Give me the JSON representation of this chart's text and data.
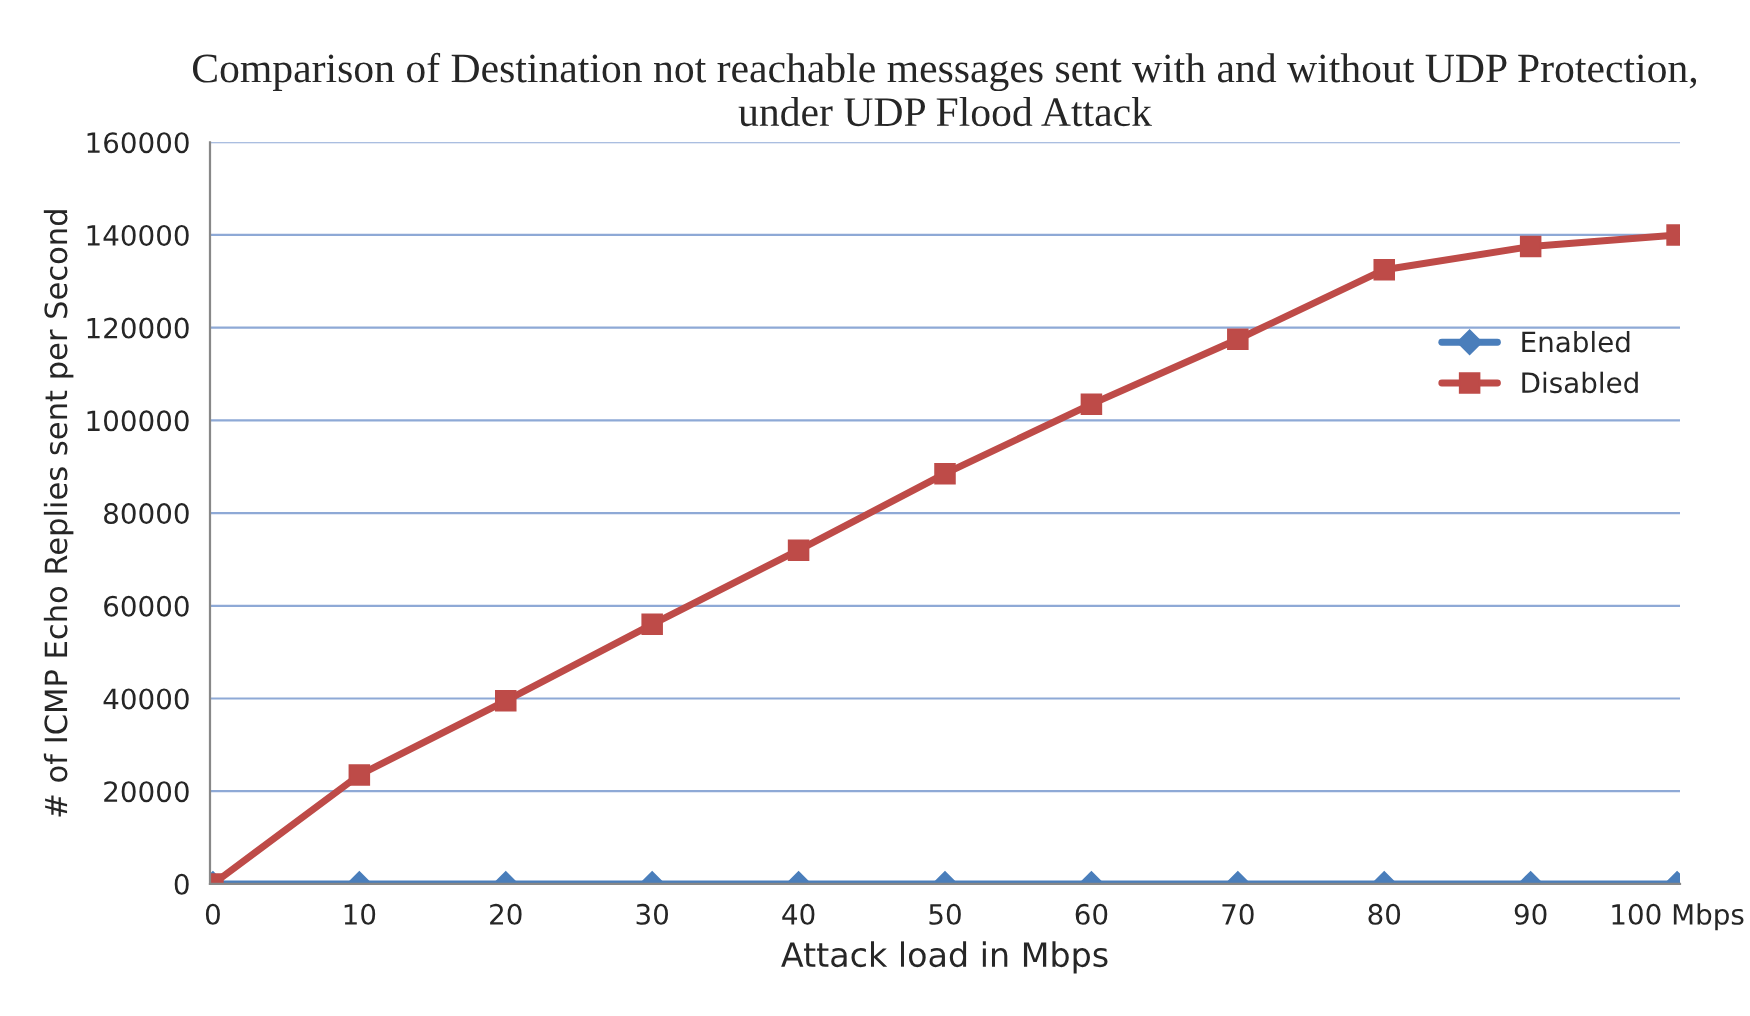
{
  "chart_data": {
    "type": "line",
    "title": "Comparison of Destination not reachable messages sent with and without UDP Protection, under UDP Flood Attack",
    "xlabel": "Attack load in Mbps",
    "ylabel": "# of ICMP Echo Replies sent per Second",
    "categories": [
      "0",
      "10",
      "20",
      "30",
      "40",
      "50",
      "60",
      "70",
      "80",
      "90",
      "100 Mbps"
    ],
    "series": [
      {
        "name": "Enabled",
        "color": "#4a7ebb",
        "marker": "diamond",
        "values": [
          0,
          0,
          0,
          0,
          0,
          0,
          0,
          0,
          0,
          0,
          0
        ]
      },
      {
        "name": "Disabled",
        "color": "#be4b48",
        "marker": "square",
        "values": [
          0,
          23500,
          39500,
          56000,
          72000,
          88500,
          103500,
          117500,
          132500,
          137500,
          140000
        ]
      }
    ],
    "ylim": [
      0,
      160000
    ],
    "yticks": [
      0,
      20000,
      40000,
      60000,
      80000,
      100000,
      120000,
      140000,
      160000
    ],
    "grid": "y",
    "legend": "right",
    "line_style": "solid"
  }
}
